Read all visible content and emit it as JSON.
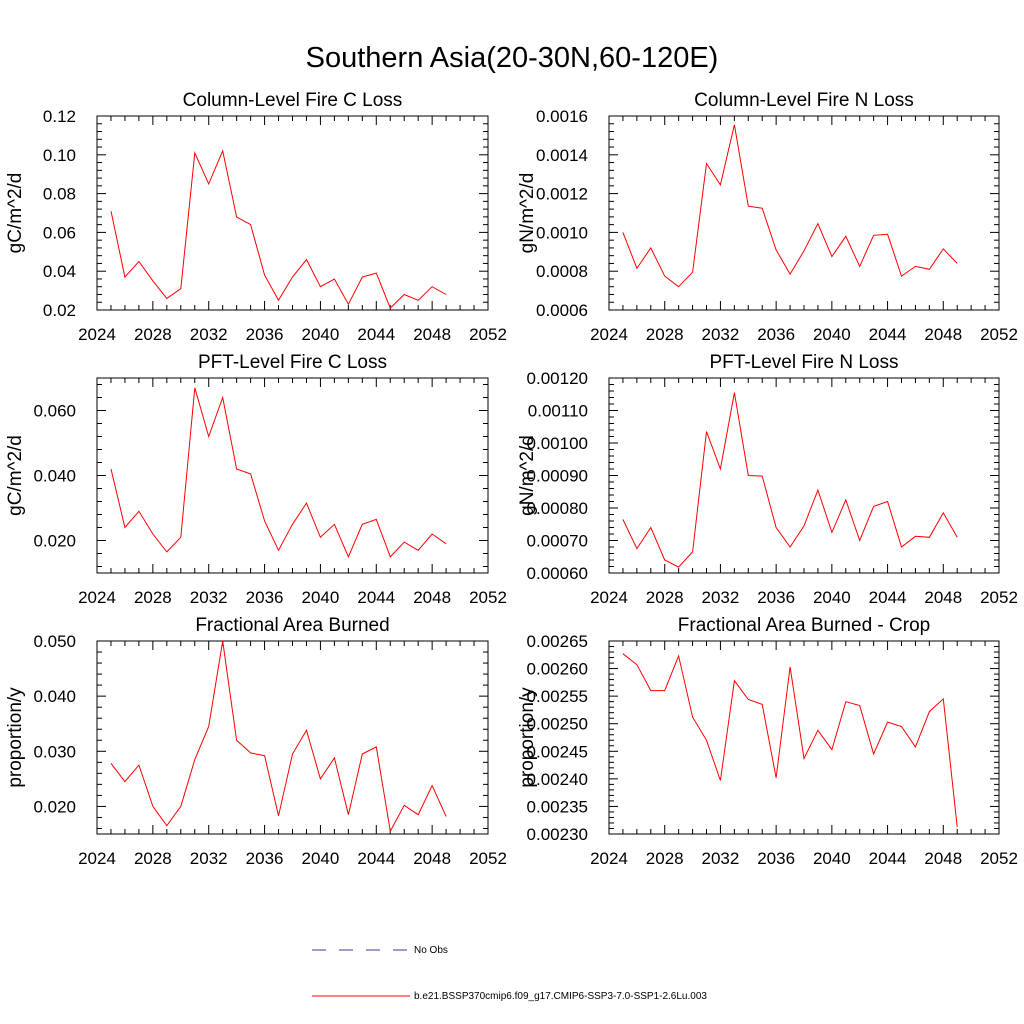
{
  "figure": {
    "title": "Southern Asia(20-30N,60-120E)",
    "legend": {
      "entries": [
        {
          "label": "No Obs",
          "color": "#3a3a9c",
          "style": "dashed"
        },
        {
          "label": "b.e21.BSSP370cmip6.f09_g17.CMIP6-SSP3-7.0-SSP1-2.6Lu.003",
          "color": "#ff0000",
          "style": "solid"
        }
      ],
      "placement": "bottom-center"
    }
  },
  "chart_data": [
    {
      "type": "line",
      "title": "Column-Level Fire C Loss",
      "ylabel": "gC/m^2/d",
      "xlim": [
        2024,
        2052
      ],
      "ylim": [
        0.02,
        0.12
      ],
      "xticks": [
        "2024",
        "2028",
        "2032",
        "2036",
        "2040",
        "2044",
        "2048",
        "2052"
      ],
      "yticks": [
        "0.02",
        "0.04",
        "0.06",
        "0.08",
        "0.10",
        "0.12"
      ],
      "x": [
        2025,
        2026,
        2027,
        2028,
        2029,
        2030,
        2031,
        2032,
        2033,
        2034,
        2035,
        2036,
        2037,
        2038,
        2039,
        2040,
        2041,
        2042,
        2043,
        2044,
        2045,
        2046,
        2047,
        2048,
        2049
      ],
      "series": [
        {
          "color": "#ff0000",
          "values": [
            0.071,
            0.037,
            0.045,
            0.035,
            0.026,
            0.031,
            0.101,
            0.085,
            0.102,
            0.068,
            0.064,
            0.038,
            0.025,
            0.037,
            0.046,
            0.032,
            0.036,
            0.023,
            0.037,
            0.039,
            0.021,
            0.028,
            0.025,
            0.032,
            0.028
          ]
        }
      ]
    },
    {
      "type": "line",
      "title": "Column-Level Fire N Loss",
      "ylabel": "gN/m^2/d",
      "xlim": [
        2024,
        2052
      ],
      "ylim": [
        0.0006,
        0.0016
      ],
      "xticks": [
        "2024",
        "2028",
        "2032",
        "2036",
        "2040",
        "2044",
        "2048",
        "2052"
      ],
      "yticks": [
        "0.0006",
        "0.0008",
        "0.0010",
        "0.0012",
        "0.0014",
        "0.0016"
      ],
      "x": [
        2025,
        2026,
        2027,
        2028,
        2029,
        2030,
        2031,
        2032,
        2033,
        2034,
        2035,
        2036,
        2037,
        2038,
        2039,
        2040,
        2041,
        2042,
        2043,
        2044,
        2045,
        2046,
        2047,
        2048,
        2049
      ],
      "series": [
        {
          "color": "#ff0000",
          "values": [
            0.001,
            0.000815,
            0.00092,
            0.000775,
            0.00072,
            0.000795,
            0.001355,
            0.001245,
            0.001555,
            0.001135,
            0.001125,
            0.00091,
            0.000785,
            0.000905,
            0.001045,
            0.000875,
            0.00098,
            0.000825,
            0.000985,
            0.00099,
            0.000775,
            0.000825,
            0.00081,
            0.000915,
            0.00084
          ]
        }
      ]
    },
    {
      "type": "line",
      "title": "PFT-Level Fire C Loss",
      "ylabel": "gC/m^2/d",
      "xlim": [
        2024,
        2052
      ],
      "ylim": [
        0.01,
        0.07
      ],
      "xticks": [
        "2024",
        "2028",
        "2032",
        "2036",
        "2040",
        "2044",
        "2048",
        "2052"
      ],
      "yticks": [
        "0.020",
        "0.040",
        "0.060"
      ],
      "ytick_values": [
        0.02,
        0.04,
        0.06
      ],
      "x": [
        2025,
        2026,
        2027,
        2028,
        2029,
        2030,
        2031,
        2032,
        2033,
        2034,
        2035,
        2036,
        2037,
        2038,
        2039,
        2040,
        2041,
        2042,
        2043,
        2044,
        2045,
        2046,
        2047,
        2048,
        2049
      ],
      "series": [
        {
          "color": "#ff0000",
          "values": [
            0.042,
            0.024,
            0.029,
            0.022,
            0.0165,
            0.021,
            0.067,
            0.052,
            0.064,
            0.042,
            0.0405,
            0.026,
            0.017,
            0.025,
            0.0315,
            0.021,
            0.025,
            0.015,
            0.025,
            0.0265,
            0.015,
            0.0195,
            0.017,
            0.022,
            0.019
          ]
        }
      ]
    },
    {
      "type": "line",
      "title": "PFT-Level Fire N Loss",
      "ylabel": "gN/m^2/d",
      "xlim": [
        2024,
        2052
      ],
      "ylim": [
        0.0006,
        0.0012
      ],
      "xticks": [
        "2024",
        "2028",
        "2032",
        "2036",
        "2040",
        "2044",
        "2048",
        "2052"
      ],
      "yticks": [
        "0.00060",
        "0.00070",
        "0.00080",
        "0.00090",
        "0.00100",
        "0.00110",
        "0.00120"
      ],
      "x": [
        2025,
        2026,
        2027,
        2028,
        2029,
        2030,
        2031,
        2032,
        2033,
        2034,
        2035,
        2036,
        2037,
        2038,
        2039,
        2040,
        2041,
        2042,
        2043,
        2044,
        2045,
        2046,
        2047,
        2048,
        2049
      ],
      "series": [
        {
          "color": "#ff0000",
          "values": [
            0.000765,
            0.000675,
            0.00074,
            0.00064,
            0.000618,
            0.000665,
            0.001035,
            0.00092,
            0.001155,
            0.0009,
            0.000898,
            0.00074,
            0.00068,
            0.000745,
            0.000855,
            0.000725,
            0.000825,
            0.0007,
            0.000805,
            0.00082,
            0.00068,
            0.000713,
            0.00071,
            0.000785,
            0.00071
          ]
        }
      ]
    },
    {
      "type": "line",
      "title": "Fractional Area Burned",
      "ylabel": "proportion/y",
      "xlim": [
        2024,
        2052
      ],
      "ylim": [
        0.015,
        0.05
      ],
      "xticks": [
        "2024",
        "2028",
        "2032",
        "2036",
        "2040",
        "2044",
        "2048",
        "2052"
      ],
      "yticks": [
        "0.020",
        "0.030",
        "0.040",
        "0.050"
      ],
      "ytick_values": [
        0.02,
        0.03,
        0.04,
        0.05
      ],
      "x": [
        2025,
        2026,
        2027,
        2028,
        2029,
        2030,
        2031,
        2032,
        2033,
        2034,
        2035,
        2036,
        2037,
        2038,
        2039,
        2040,
        2041,
        2042,
        2043,
        2044,
        2045,
        2046,
        2047,
        2048,
        2049
      ],
      "series": [
        {
          "color": "#ff0000",
          "values": [
            0.0278,
            0.0245,
            0.0275,
            0.02,
            0.0165,
            0.02,
            0.0285,
            0.0345,
            0.05,
            0.032,
            0.0297,
            0.0292,
            0.0183,
            0.0295,
            0.0338,
            0.025,
            0.0288,
            0.0185,
            0.0295,
            0.0308,
            0.0155,
            0.0202,
            0.0185,
            0.0238,
            0.0182
          ]
        }
      ]
    },
    {
      "type": "line",
      "title": "Fractional Area Burned - Crop",
      "ylabel": "proportion/y",
      "xlim": [
        2024,
        2052
      ],
      "ylim": [
        0.0023,
        0.00265
      ],
      "xticks": [
        "2024",
        "2028",
        "2032",
        "2036",
        "2040",
        "2044",
        "2048",
        "2052"
      ],
      "yticks": [
        "0.00230",
        "0.00235",
        "0.00240",
        "0.00245",
        "0.00250",
        "0.00255",
        "0.00260",
        "0.00265"
      ],
      "x": [
        2025,
        2026,
        2027,
        2028,
        2029,
        2030,
        2031,
        2032,
        2033,
        2034,
        2035,
        2036,
        2037,
        2038,
        2039,
        2040,
        2041,
        2042,
        2043,
        2044,
        2045,
        2046,
        2047,
        2048,
        2049
      ],
      "series": [
        {
          "color": "#ff0000",
          "values": [
            0.002627,
            0.002607,
            0.00256,
            0.00256,
            0.002623,
            0.002512,
            0.00247,
            0.002397,
            0.002578,
            0.002544,
            0.002535,
            0.002402,
            0.002603,
            0.002437,
            0.002488,
            0.002453,
            0.00254,
            0.002533,
            0.002445,
            0.002503,
            0.002495,
            0.002458,
            0.002522,
            0.002545,
            0.002313
          ]
        }
      ]
    }
  ]
}
